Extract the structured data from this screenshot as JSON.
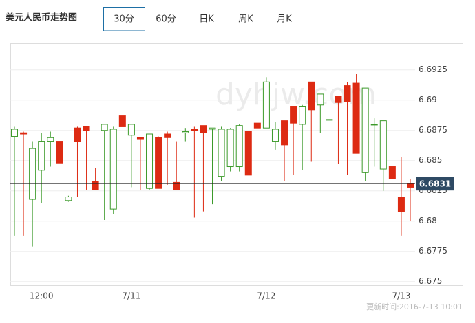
{
  "header": {
    "title": "美元人民币走势图",
    "tabs": [
      "30分",
      "60分",
      "日K",
      "周K",
      "月K"
    ],
    "active_tab": 0
  },
  "chart_data": {
    "type": "candlestick",
    "categories": [
      null,
      null,
      null,
      "12:00",
      null,
      null,
      null,
      null,
      null,
      null,
      null,
      null,
      null,
      "7/11",
      null,
      null,
      null,
      null,
      null,
      null,
      null,
      null,
      null,
      null,
      null,
      null,
      null,
      null,
      "7/12",
      null,
      null,
      null,
      null,
      null,
      null,
      null,
      null,
      null,
      null,
      null,
      null,
      null,
      null,
      "7/13",
      null
    ],
    "open": [
      6.687,
      6.6873,
      6.6818,
      6.6842,
      6.6866,
      6.6866,
      6.6817,
      6.6877,
      6.6878,
      6.6833,
      6.6875,
      6.681,
      6.6887,
      6.6871,
      6.6869,
      6.6827,
      6.6869,
      6.6872,
      6.6832,
      6.6873,
      6.6876,
      6.6879,
      6.6876,
      6.6837,
      6.6845,
      6.6845,
      6.6874,
      6.6881,
      6.6877,
      6.6866,
      6.6883,
      6.6895,
      6.688,
      6.6915,
      6.6896,
      6.6884,
      6.6903,
      6.6912,
      6.6914,
      6.684,
      6.688,
      6.6843,
      6.6845,
      6.682,
      6.6831
    ],
    "high": [
      6.6878,
      6.6874,
      6.6866,
      6.6873,
      6.6874,
      6.6866,
      6.6821,
      6.6878,
      6.6878,
      6.6844,
      6.688,
      6.6878,
      6.6887,
      6.688,
      6.6869,
      6.6872,
      6.687,
      6.6874,
      6.6866,
      6.6877,
      6.6878,
      6.6879,
      6.6877,
      6.6878,
      6.6877,
      6.688,
      6.6874,
      6.6881,
      6.6919,
      6.6882,
      6.6883,
      6.6895,
      6.6896,
      6.6915,
      6.6905,
      6.6884,
      6.6903,
      6.6915,
      6.6922,
      6.691,
      6.6885,
      6.6883,
      6.6845,
      6.6853,
      6.6835
    ],
    "low": [
      6.6788,
      6.6788,
      6.6779,
      6.6815,
      6.6845,
      6.6848,
      6.6816,
      6.682,
      6.6826,
      6.6826,
      6.6801,
      6.6806,
      6.6878,
      6.6828,
      6.6826,
      6.6826,
      6.6827,
      6.683,
      6.6826,
      6.6866,
      6.6803,
      6.6808,
      6.6814,
      6.6833,
      6.6841,
      6.6841,
      6.6838,
      6.6877,
      6.6877,
      6.6859,
      6.6833,
      6.6838,
      6.6842,
      6.6849,
      6.6873,
      6.6884,
      6.6847,
      6.6838,
      6.6856,
      6.6833,
      6.6845,
      6.6825,
      6.6835,
      6.6788,
      6.68
    ],
    "close": [
      6.6876,
      6.6872,
      6.686,
      6.6866,
      6.6869,
      6.6848,
      6.682,
      6.6866,
      6.6875,
      6.6826,
      6.688,
      6.6876,
      6.6878,
      6.688,
      6.6868,
      6.6872,
      6.6827,
      6.6869,
      6.6826,
      6.6874,
      6.6875,
      6.6873,
      6.6877,
      6.6876,
      6.6876,
      6.6879,
      6.6838,
      6.6877,
      6.6915,
      6.6876,
      6.6863,
      6.6881,
      6.6895,
      6.6892,
      6.6905,
      6.6884,
      6.6898,
      6.6899,
      6.6856,
      6.691,
      6.688,
      6.6883,
      6.6835,
      6.6808,
      6.6828
    ],
    "up_color": "#3c9a2a",
    "down_color": "#dd2a12",
    "ylim": [
      6.6747,
      6.6947
    ],
    "yticks": [
      6.675,
      6.6775,
      6.68,
      6.6825,
      6.685,
      6.6875,
      6.69,
      6.6925
    ],
    "last_price": 6.6831,
    "watermark": "dyhjw.com",
    "updated": "更新时间:2016-7-13 10:01"
  }
}
